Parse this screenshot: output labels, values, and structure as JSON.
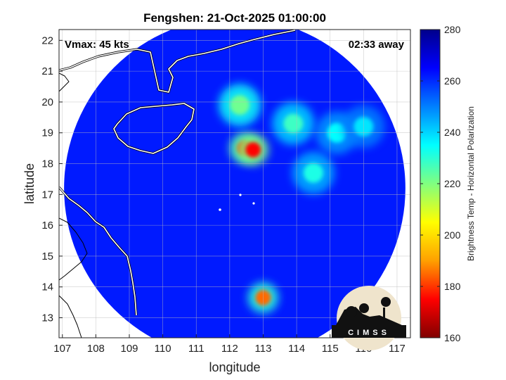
{
  "chart_data": {
    "type": "heatmap",
    "title": "Fengshen: 21-Oct-2025 01:00:00",
    "xlabel": "longitude",
    "ylabel": "latitude",
    "xlim": [
      106.9,
      117.4
    ],
    "ylim": [
      12.35,
      22.35
    ],
    "xticks": [
      107,
      108,
      109,
      110,
      111,
      112,
      113,
      114,
      115,
      116,
      117
    ],
    "yticks": [
      13,
      14,
      15,
      16,
      17,
      18,
      19,
      20,
      21,
      22
    ],
    "grid": true,
    "annotations": {
      "top_left": "Vmax: 45 kts",
      "top_right": "02:33 away"
    },
    "colorbar": {
      "label": "Brightness Temp - Horizontal Polarization",
      "range": [
        160,
        280
      ],
      "ticks": [
        160,
        180,
        200,
        220,
        240,
        260,
        280
      ],
      "colors": [
        "#800000",
        "#ff0000",
        "#ffa000",
        "#ffff00",
        "#80ff80",
        "#00ffff",
        "#0080ff",
        "#0000ff",
        "#00008b"
      ]
    },
    "swath": {
      "center_lon": 112.15,
      "center_lat": 17.2,
      "radius_deg": 5.1,
      "background_temp": 262
    },
    "features": [
      {
        "name": "eyewall-core",
        "lon": 112.45,
        "lat": 18.5,
        "temp": 180
      },
      {
        "name": "core-inner",
        "lon": 112.7,
        "lat": 18.45,
        "temp": 175
      },
      {
        "name": "band-north",
        "lon": 113.9,
        "lat": 19.3,
        "temp": 228
      },
      {
        "name": "band-east",
        "lon": 115.2,
        "lat": 19.0,
        "temp": 235
      },
      {
        "name": "band-northwest",
        "lon": 112.3,
        "lat": 19.9,
        "temp": 222
      },
      {
        "name": "band-south",
        "lon": 114.5,
        "lat": 17.7,
        "temp": 232
      },
      {
        "name": "spot-south",
        "lon": 113.0,
        "lat": 13.65,
        "temp": 185
      },
      {
        "name": "band-far-east",
        "lon": 116.0,
        "lat": 19.2,
        "temp": 238
      }
    ]
  },
  "logo": {
    "text": "CIMSS"
  }
}
